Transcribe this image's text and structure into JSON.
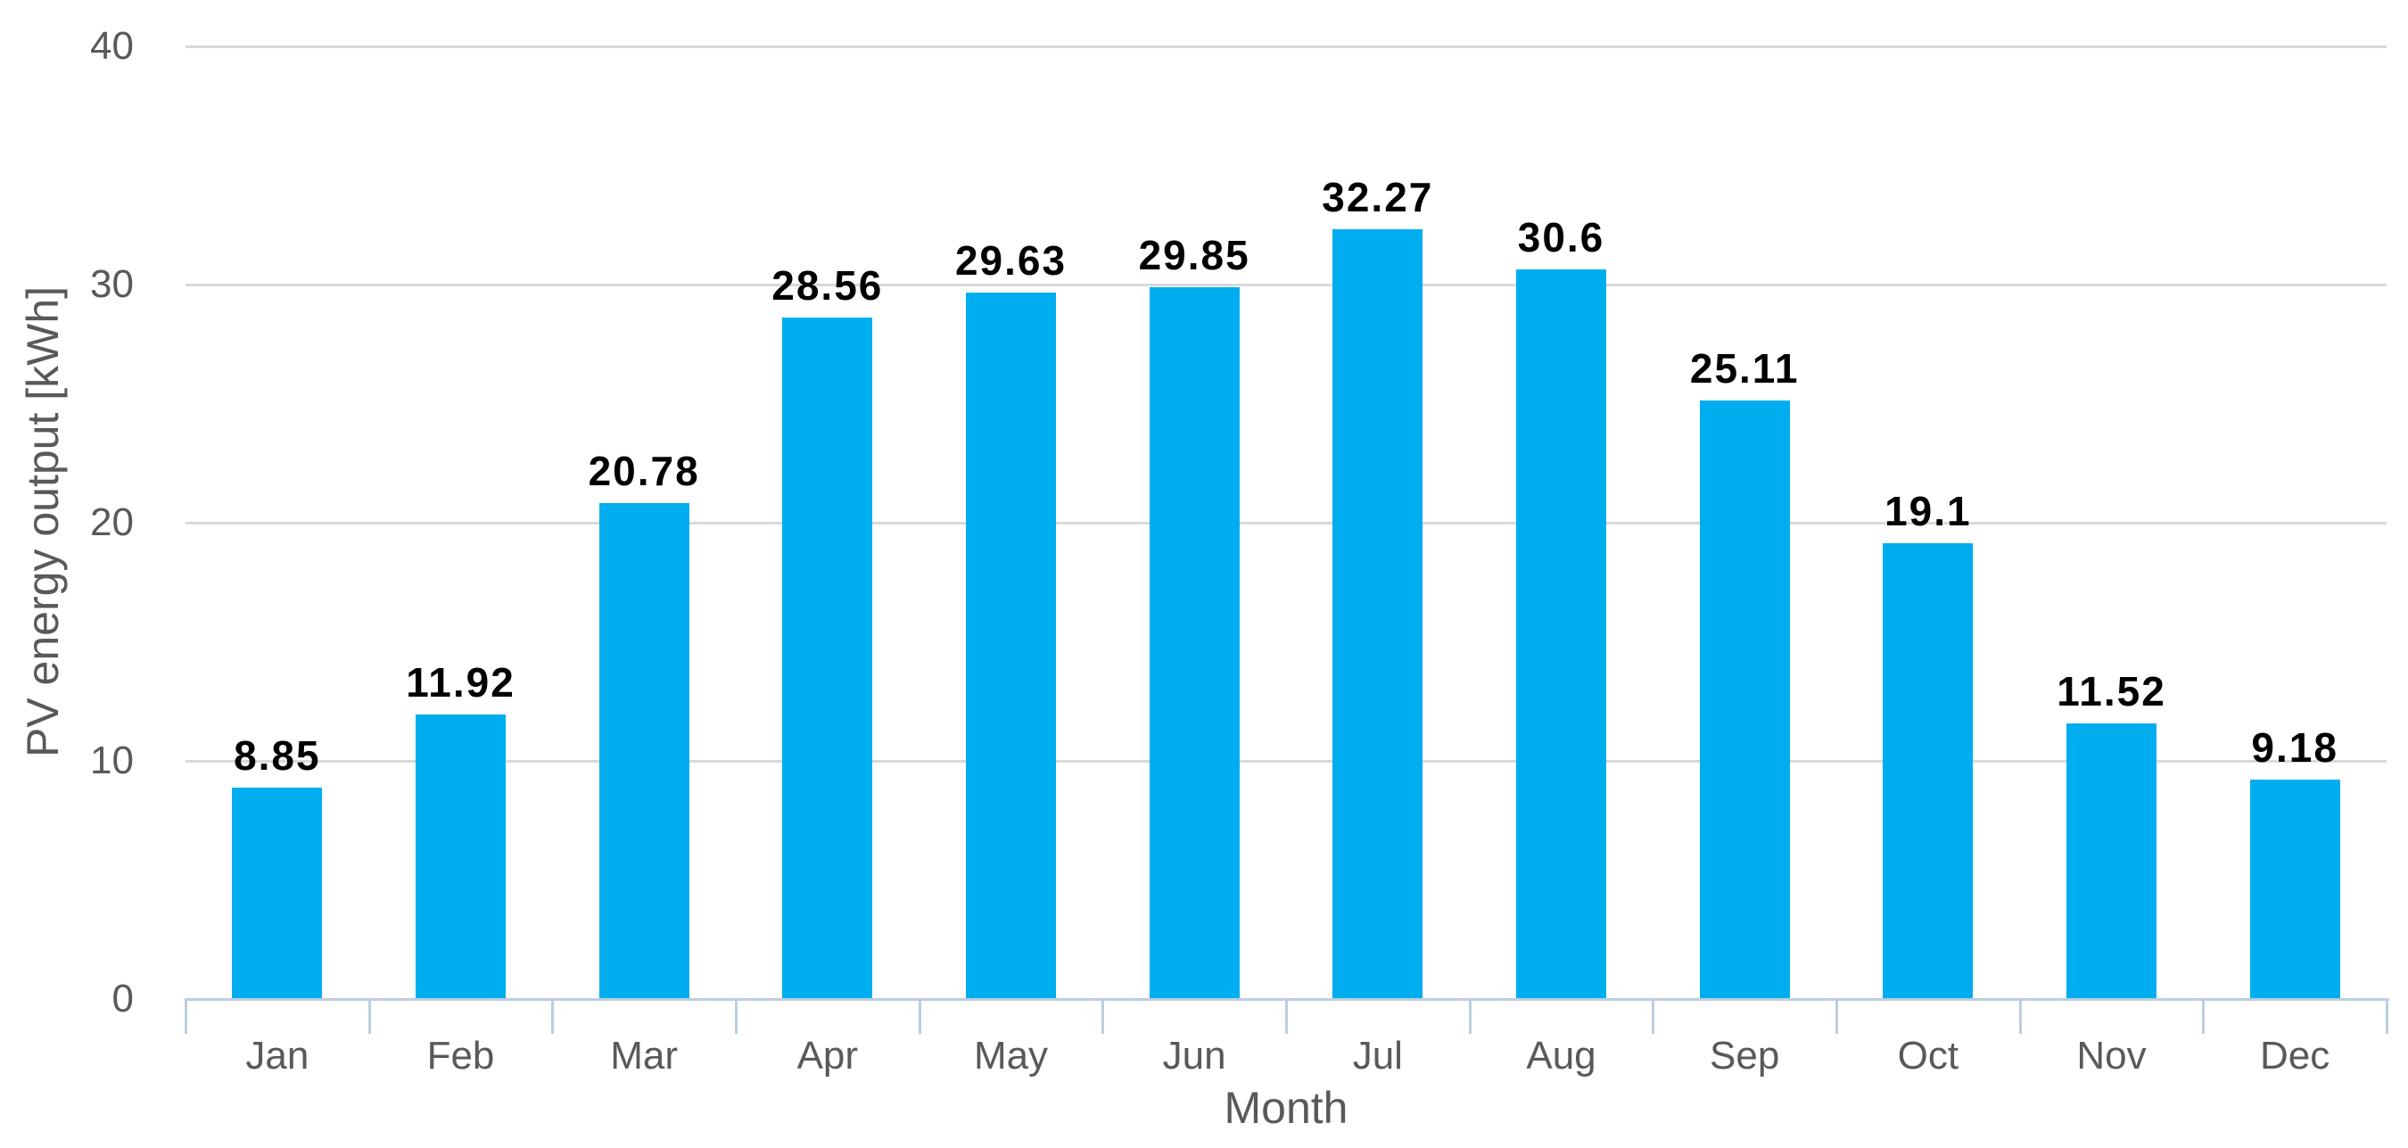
{
  "chart_data": {
    "type": "bar",
    "title": "",
    "categories": [
      "Jan",
      "Feb",
      "Mar",
      "Apr",
      "May",
      "Jun",
      "Jul",
      "Aug",
      "Sep",
      "Oct",
      "Nov",
      "Dec"
    ],
    "values": [
      8.85,
      11.92,
      20.78,
      28.56,
      29.63,
      29.85,
      32.27,
      30.6,
      25.11,
      19.1,
      11.52,
      9.18
    ],
    "value_labels": [
      "8.85",
      "11.92",
      "20.78",
      "28.56",
      "29.63",
      "29.85",
      "32.27",
      "30.6",
      "25.11",
      "19.1",
      "11.52",
      "9.18"
    ],
    "xlabel": "Month",
    "ylabel": "PV energy output [kWh]",
    "ylim": [
      0,
      40
    ],
    "yticks": [
      0,
      10,
      20,
      30,
      40
    ],
    "grid": "horizontal-only",
    "legend": "none",
    "colors": {
      "bar_fill": "#00AEEF",
      "gridline": "#D9D9D9",
      "axis_line": "#BCCEDF",
      "tick_label": "#595959",
      "axis_title": "#595959",
      "value_label": "#000000",
      "background": "#FFFFFF"
    }
  }
}
